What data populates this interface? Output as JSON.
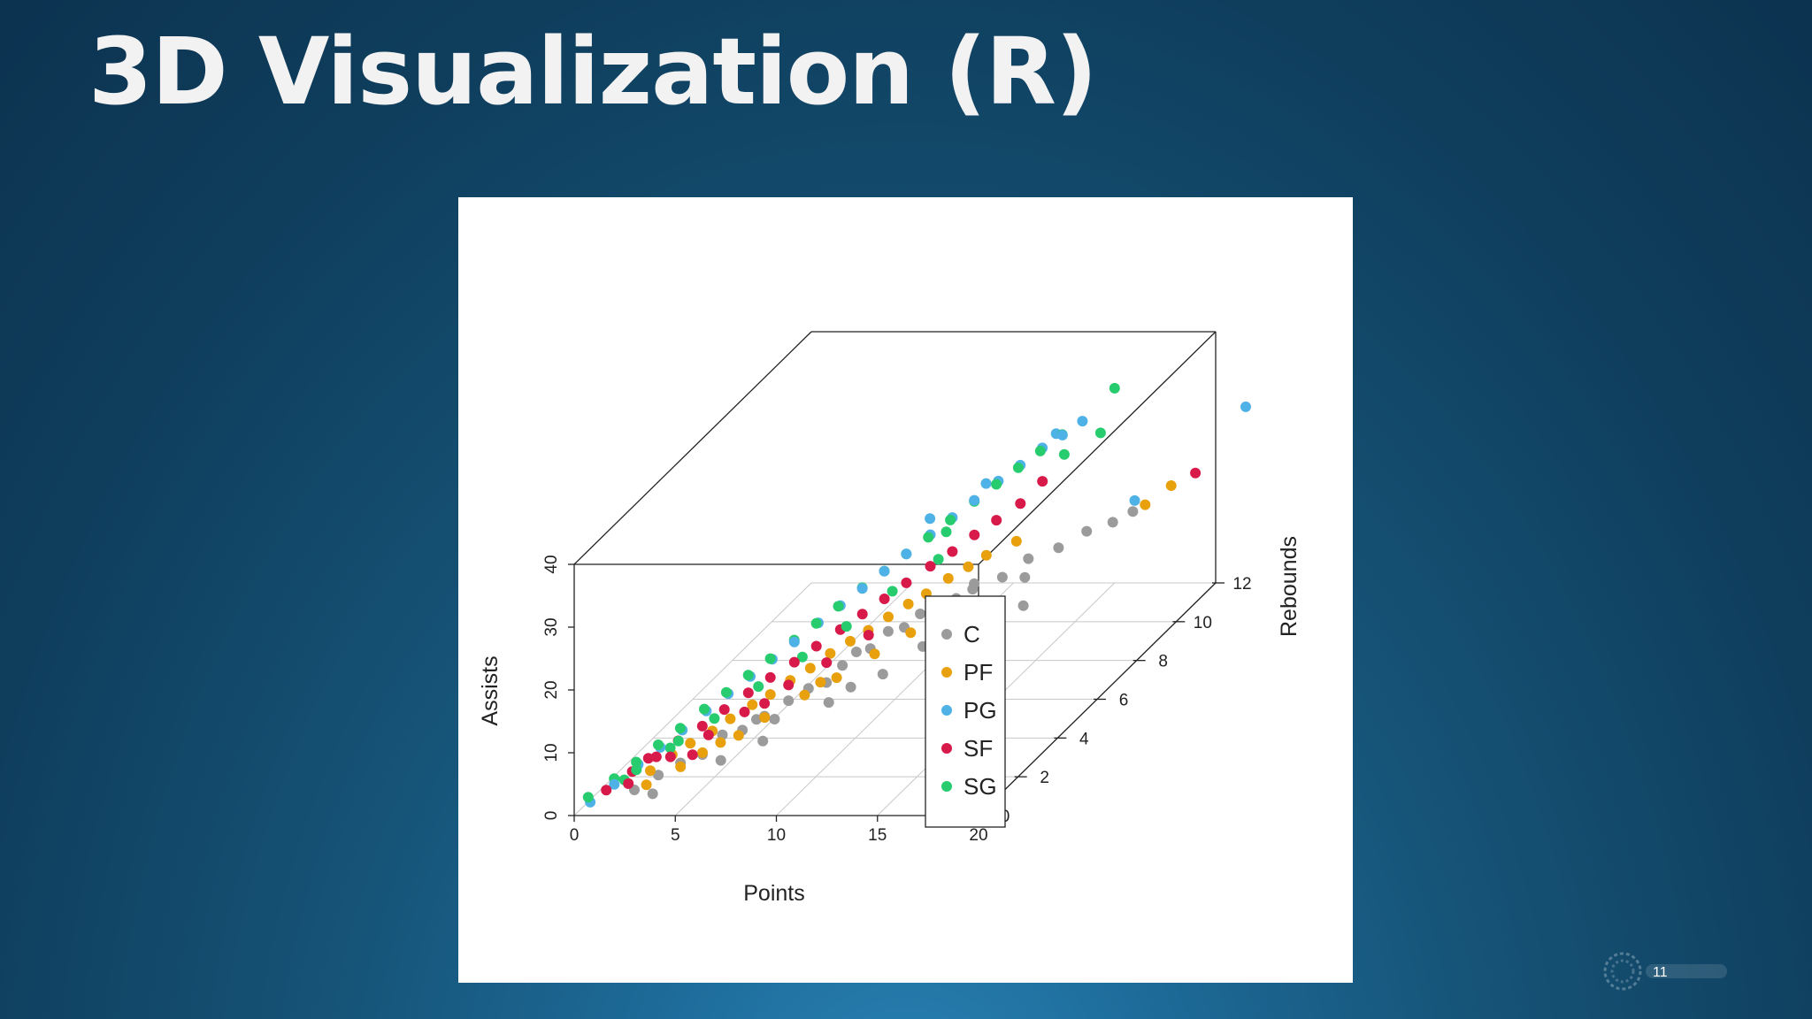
{
  "slide": {
    "title": "3D Visualization (R)",
    "page_number": "11"
  },
  "colors": {
    "background": "#125070",
    "C": "#9b9b9b",
    "PF": "#e8a00c",
    "PG": "#4fb2e6",
    "SF": "#d81a4a",
    "SG": "#27cc6e"
  },
  "chart_data": {
    "type": "scatter",
    "projection": "3d",
    "xlabel": "Points",
    "ylabel": "Rebounds",
    "zlabel": "Assists",
    "xlim": [
      0,
      20
    ],
    "ylim": [
      0,
      12
    ],
    "zlim": [
      0,
      40
    ],
    "x_ticks": [
      "0",
      "5",
      "10",
      "15",
      "20"
    ],
    "y_ticks": [
      "0",
      "2",
      "4",
      "6",
      "8",
      "10",
      "12"
    ],
    "z_ticks": [
      "0",
      "10",
      "20",
      "30",
      "40"
    ],
    "grid": true,
    "legend": {
      "position": "bottom-right",
      "entries": [
        "C",
        "PF",
        "PG",
        "SF",
        "SG"
      ]
    },
    "series": [
      {
        "name": "C",
        "points": [
          [
            2.0,
            1.0,
            1.0
          ],
          [
            2.6,
            1.6,
            1.5
          ],
          [
            3.3,
            2.0,
            2.2
          ],
          [
            3.9,
            2.5,
            2.0
          ],
          [
            4.4,
            3.0,
            3.6
          ],
          [
            4.9,
            3.5,
            2.8
          ],
          [
            5.3,
            3.8,
            3.6
          ],
          [
            5.7,
            3.8,
            4.1
          ],
          [
            6.0,
            4.0,
            3.0
          ],
          [
            6.2,
            4.5,
            4.4
          ],
          [
            6.7,
            5.0,
            4.8
          ],
          [
            7.1,
            5.5,
            4.2
          ],
          [
            7.4,
            6.0,
            5.4
          ],
          [
            7.7,
            6.4,
            6.3
          ],
          [
            8.0,
            6.8,
            5.6
          ],
          [
            8.3,
            7.4,
            6.5
          ],
          [
            8.7,
            7.8,
            5.9
          ],
          [
            9.1,
            8.2,
            6.8
          ],
          [
            9.6,
            8.6,
            7.5
          ],
          [
            10.1,
            9.0,
            6.8
          ],
          [
            10.6,
            9.4,
            7.9
          ],
          [
            11.5,
            9.9,
            7.4
          ],
          [
            12.3,
            10.4,
            8.8
          ],
          [
            13.4,
            10.8,
            9.3
          ],
          [
            14.4,
            11.2,
            10.7
          ],
          [
            15.3,
            11.6,
            10.9
          ],
          [
            10.3,
            7.1,
            5.0
          ],
          [
            12.2,
            7.9,
            6.2
          ],
          [
            14.1,
            8.3,
            7.8
          ],
          [
            9.4,
            6.0,
            4.0
          ],
          [
            7.9,
            4.8,
            3.2
          ],
          [
            11.3,
            8.6,
            9.5
          ],
          [
            13.1,
            9.4,
            8.9
          ],
          [
            6.4,
            3.0,
            2.6
          ],
          [
            5.1,
            2.2,
            2.0
          ],
          [
            8.6,
            5.2,
            4.4
          ],
          [
            3.1,
            0.8,
            1.0
          ],
          [
            16.1,
            11.8,
            12.0
          ]
        ]
      },
      {
        "name": "PF",
        "points": [
          [
            1.6,
            1.1,
            1.7
          ],
          [
            2.2,
            1.6,
            2.2
          ],
          [
            2.7,
            2.2,
            2.9
          ],
          [
            3.2,
            2.6,
            3.5
          ],
          [
            3.8,
            3.1,
            3.9
          ],
          [
            4.3,
            3.5,
            4.6
          ],
          [
            4.9,
            4.0,
            5.3
          ],
          [
            5.4,
            4.4,
            5.7
          ],
          [
            5.9,
            4.9,
            6.4
          ],
          [
            6.4,
            5.4,
            6.8
          ],
          [
            6.9,
            5.9,
            7.6
          ],
          [
            7.4,
            6.4,
            8.0
          ],
          [
            7.9,
            6.8,
            8.5
          ],
          [
            8.4,
            7.3,
            9.1
          ],
          [
            8.9,
            7.8,
            9.6
          ],
          [
            9.4,
            8.2,
            10.0
          ],
          [
            10.0,
            8.7,
            10.9
          ],
          [
            10.5,
            9.2,
            11.2
          ],
          [
            11.0,
            9.6,
            11.8
          ],
          [
            3.5,
            1.8,
            2.2
          ],
          [
            4.6,
            2.7,
            3.3
          ],
          [
            5.8,
            3.7,
            4.2
          ],
          [
            6.9,
            4.6,
            5.0
          ],
          [
            7.8,
            5.3,
            5.6
          ],
          [
            8.8,
            6.2,
            6.6
          ],
          [
            9.8,
            7.0,
            7.5
          ],
          [
            2.4,
            1.2,
            1.2
          ],
          [
            5.2,
            3.0,
            3.5
          ],
          [
            7.2,
            5.1,
            5.5
          ],
          [
            4.0,
            2.4,
            2.6
          ],
          [
            12.0,
            10.1,
            12.5
          ],
          [
            17.0,
            11.5,
            14.0
          ],
          [
            17.8,
            12.0,
            15.5
          ]
        ]
      },
      {
        "name": "PG",
        "points": [
          [
            0.5,
            0.3,
            1.2
          ],
          [
            1.2,
            0.8,
            2.5
          ],
          [
            1.8,
            1.4,
            3.8
          ],
          [
            2.4,
            1.9,
            5.0
          ],
          [
            3.0,
            2.4,
            6.2
          ],
          [
            3.6,
            3.0,
            7.4
          ],
          [
            4.2,
            3.5,
            8.6
          ],
          [
            4.8,
            4.0,
            9.8
          ],
          [
            5.4,
            4.5,
            11.0
          ],
          [
            6.0,
            5.0,
            12.2
          ],
          [
            6.6,
            5.6,
            13.4
          ],
          [
            7.2,
            6.1,
            14.6
          ],
          [
            7.8,
            6.6,
            15.8
          ],
          [
            8.4,
            7.1,
            17.0
          ],
          [
            9.0,
            7.6,
            18.2
          ],
          [
            9.6,
            8.2,
            19.4
          ],
          [
            10.2,
            8.7,
            20.6
          ],
          [
            10.8,
            9.2,
            21.8
          ],
          [
            11.4,
            9.8,
            23.0
          ],
          [
            12.0,
            10.3,
            24.0
          ],
          [
            12.6,
            10.8,
            25.2
          ],
          [
            13.2,
            11.2,
            26.0
          ],
          [
            13.8,
            11.6,
            27.0
          ],
          [
            10.6,
            10.0,
            22.0
          ],
          [
            8.8,
            9.0,
            19.5
          ],
          [
            12.5,
            11.6,
            25.0
          ],
          [
            15.8,
            12.2,
            12.5
          ],
          [
            21.0,
            12.5,
            26.5
          ]
        ]
      },
      {
        "name": "SF",
        "points": [
          [
            0.9,
            0.7,
            1.9
          ],
          [
            1.6,
            1.3,
            3.0
          ],
          [
            2.3,
            1.8,
            3.8
          ],
          [
            2.9,
            2.3,
            4.8
          ],
          [
            3.6,
            2.8,
            5.6
          ],
          [
            4.2,
            3.3,
            6.7
          ],
          [
            4.8,
            3.9,
            7.5
          ],
          [
            5.4,
            4.4,
            8.4
          ],
          [
            6.1,
            4.9,
            9.3
          ],
          [
            6.7,
            5.4,
            10.3
          ],
          [
            7.3,
            6.0,
            11.1
          ],
          [
            7.9,
            6.5,
            12.0
          ],
          [
            8.5,
            7.0,
            12.9
          ],
          [
            9.1,
            7.5,
            13.9
          ],
          [
            9.7,
            8.1,
            14.7
          ],
          [
            10.3,
            8.6,
            15.5
          ],
          [
            10.9,
            9.1,
            16.6
          ],
          [
            11.5,
            9.6,
            17.4
          ],
          [
            12.1,
            10.2,
            18.2
          ],
          [
            1.8,
            0.9,
            2.3
          ],
          [
            3.0,
            1.8,
            3.8
          ],
          [
            4.1,
            2.6,
            4.8
          ],
          [
            5.1,
            3.4,
            6.0
          ],
          [
            6.3,
            4.4,
            7.2
          ],
          [
            7.4,
            5.2,
            8.3
          ],
          [
            8.5,
            6.2,
            9.6
          ],
          [
            2.2,
            1.5,
            4.5
          ],
          [
            3.8,
            2.1,
            3.2
          ],
          [
            5.6,
            3.9,
            5.8
          ],
          [
            12.8,
            10.6,
            20.5
          ],
          [
            19.0,
            12.0,
            17.5
          ]
        ]
      },
      {
        "name": "SG",
        "points": [
          [
            0.4,
            0.3,
            2.0
          ],
          [
            1.1,
            0.9,
            3.1
          ],
          [
            1.7,
            1.4,
            4.2
          ],
          [
            2.3,
            1.9,
            5.4
          ],
          [
            2.9,
            2.4,
            6.5
          ],
          [
            3.5,
            3.0,
            7.7
          ],
          [
            4.1,
            3.5,
            8.8
          ],
          [
            4.7,
            4.0,
            10.0
          ],
          [
            5.3,
            4.5,
            11.1
          ],
          [
            5.9,
            5.1,
            12.2
          ],
          [
            6.5,
            5.6,
            13.3
          ],
          [
            7.1,
            6.1,
            14.5
          ],
          [
            7.7,
            6.7,
            15.6
          ],
          [
            8.3,
            7.2,
            16.7
          ],
          [
            8.9,
            7.7,
            17.9
          ],
          [
            9.5,
            8.2,
            19.0
          ],
          [
            10.1,
            8.7,
            20.2
          ],
          [
            10.7,
            9.3,
            21.3
          ],
          [
            11.3,
            9.8,
            22.5
          ],
          [
            11.9,
            10.3,
            23.6
          ],
          [
            12.5,
            10.8,
            24.7
          ],
          [
            13.1,
            11.3,
            25.8
          ],
          [
            1.5,
            1.0,
            2.6
          ],
          [
            2.8,
            2.0,
            4.6
          ],
          [
            4.0,
            3.0,
            6.2
          ],
          [
            5.2,
            4.0,
            8.2
          ],
          [
            6.4,
            5.0,
            9.8
          ],
          [
            7.6,
            6.0,
            11.6
          ],
          [
            8.8,
            7.1,
            13.8
          ],
          [
            10.0,
            8.2,
            15.5
          ],
          [
            2.0,
            1.1,
            3.9
          ],
          [
            3.3,
            1.9,
            6.0
          ],
          [
            9.8,
            8.8,
            18.0
          ],
          [
            13.0,
            11.5,
            22.0
          ],
          [
            15.0,
            12.0,
            31.0
          ],
          [
            14.5,
            11.8,
            24.5
          ]
        ]
      }
    ]
  }
}
